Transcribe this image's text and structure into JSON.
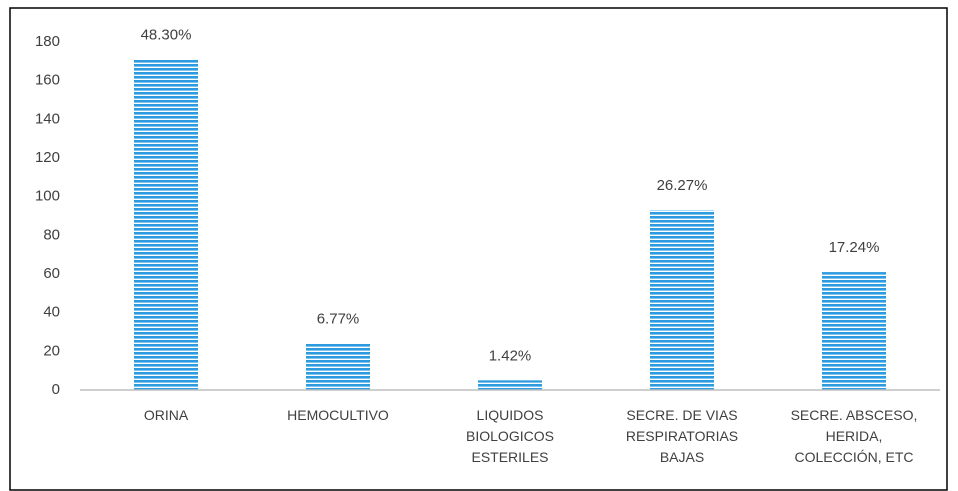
{
  "chart_data": {
    "type": "bar",
    "categories": [
      "ORINA",
      "HEMOCULTIVO",
      "LIQUIDOS BIOLOGICOS ESTERILES",
      "SECRE. DE VIAS RESPIRATORIAS BAJAS",
      "SECRE. ABSCESO, HERIDA, COLECCIÓN, ETC"
    ],
    "values": [
      171,
      24,
      5,
      93,
      61
    ],
    "annotations": [
      "48.30%",
      "6.77%",
      "1.42%",
      "26.27%",
      "17.24%"
    ],
    "color": "#2e9be0",
    "ylim": [
      0,
      180
    ],
    "yticks": [
      0,
      20,
      40,
      60,
      80,
      100,
      120,
      140,
      160,
      180
    ],
    "grid": false
  }
}
